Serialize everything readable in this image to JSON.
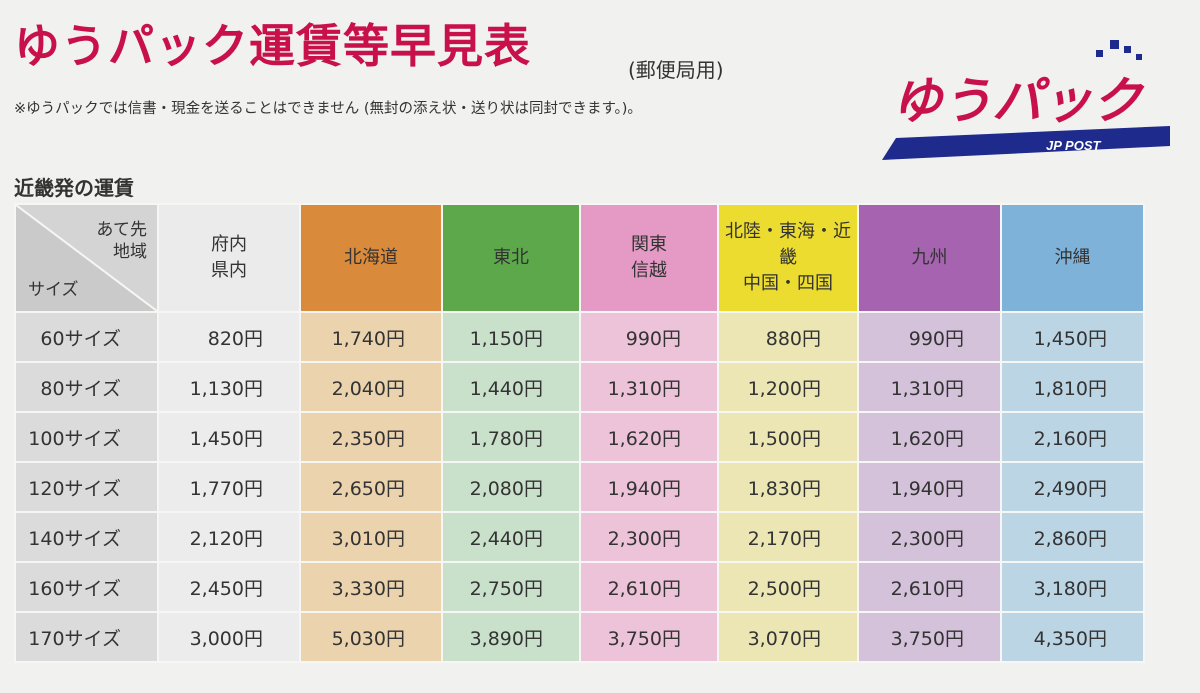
{
  "header": {
    "title": "ゆうパック運賃等早見表",
    "subtitle": "(郵便局用)",
    "note": "※ゆうパックでは信書・現金を送ることはできません (無封の添え状・送り状は同封できます。)。"
  },
  "logo": {
    "text": "ゆうパック",
    "sub": "JP POST",
    "color": "#c8104a",
    "bar_color": "#1e2a8c"
  },
  "section_title": "近畿発の運賃",
  "table": {
    "corner_dest_line1": "あて先",
    "corner_dest_line2": "地域",
    "corner_size": "サイズ",
    "columns": [
      {
        "line1": "府内",
        "line2": "県内",
        "color": "#ebebeb"
      },
      {
        "line1": "北海道",
        "line2": "",
        "color": "#d98a3a"
      },
      {
        "line1": "東北",
        "line2": "",
        "color": "#5ea84c"
      },
      {
        "line1": "関東",
        "line2": "信越",
        "color": "#e49ac4"
      },
      {
        "line1": "北陸・東海・近畿",
        "line2": "中国・四国",
        "color": "#ecdc30"
      },
      {
        "line1": "九州",
        "line2": "",
        "color": "#a563b0"
      },
      {
        "line1": "沖縄",
        "line2": "",
        "color": "#7fb2d9"
      }
    ],
    "rows": [
      {
        "size": "60サイズ",
        "prices": [
          "820円",
          "1,740円",
          "1,150円",
          "990円",
          "880円",
          "990円",
          "1,450円"
        ]
      },
      {
        "size": "80サイズ",
        "prices": [
          "1,130円",
          "2,040円",
          "1,440円",
          "1,310円",
          "1,200円",
          "1,310円",
          "1,810円"
        ]
      },
      {
        "size": "100サイズ",
        "prices": [
          "1,450円",
          "2,350円",
          "1,780円",
          "1,620円",
          "1,500円",
          "1,620円",
          "2,160円"
        ]
      },
      {
        "size": "120サイズ",
        "prices": [
          "1,770円",
          "2,650円",
          "2,080円",
          "1,940円",
          "1,830円",
          "1,940円",
          "2,490円"
        ]
      },
      {
        "size": "140サイズ",
        "prices": [
          "2,120円",
          "3,010円",
          "2,440円",
          "2,300円",
          "2,170円",
          "2,300円",
          "2,860円"
        ]
      },
      {
        "size": "160サイズ",
        "prices": [
          "2,450円",
          "3,330円",
          "2,750円",
          "2,610円",
          "2,500円",
          "2,610円",
          "3,180円"
        ]
      },
      {
        "size": "170サイズ",
        "prices": [
          "3,000円",
          "5,030円",
          "3,890円",
          "3,750円",
          "3,070円",
          "3,750円",
          "4,350円"
        ]
      }
    ]
  }
}
